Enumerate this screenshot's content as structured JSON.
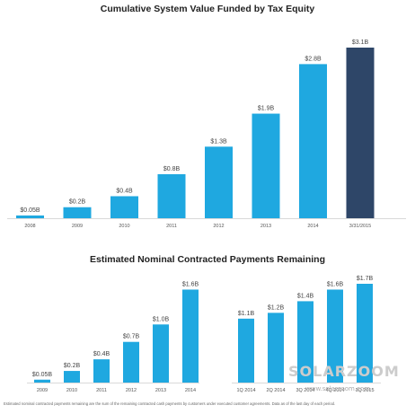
{
  "colors": {
    "bar": "#1fa8e0",
    "highlight": "#2e4668",
    "axis": "#cccccc"
  },
  "chart_data": [
    {
      "type": "bar",
      "title": "Cumulative System Value Funded by Tax Equity",
      "categories": [
        "2008",
        "2009",
        "2010",
        "2011",
        "2012",
        "2013",
        "2014",
        "3/31/2015"
      ],
      "values": [
        0.05,
        0.2,
        0.4,
        0.8,
        1.3,
        1.9,
        2.8,
        3.1
      ],
      "value_labels": [
        "$0.05B",
        "$0.2B",
        "$0.4B",
        "$0.8B",
        "$1.3B",
        "$1.9B",
        "$2.8B",
        "$3.1B"
      ],
      "highlight_index": 7,
      "unit": "$B",
      "ylim": [
        0,
        3.1
      ],
      "grid": false,
      "legend": "none"
    },
    {
      "type": "bar",
      "title": "Estimated Nominal Contracted Payments Remaining",
      "categories": [
        "2009",
        "2010",
        "2011",
        "2012",
        "2013",
        "2014",
        "1Q 2014",
        "2Q 2014",
        "3Q 2014",
        "4Q 2014",
        "1Q 2015"
      ],
      "values": [
        0.05,
        0.2,
        0.4,
        0.7,
        1.0,
        1.6,
        1.1,
        1.2,
        1.4,
        1.6,
        1.7
      ],
      "value_labels": [
        "$0.05B",
        "$0.2B",
        "$0.4B",
        "$0.7B",
        "$1.0B",
        "$1.6B",
        "$1.1B",
        "$1.2B",
        "$1.4B",
        "$1.6B",
        "$1.7B"
      ],
      "groups": [
        [
          0,
          5
        ],
        [
          6,
          10
        ]
      ],
      "unit": "$B",
      "ylim": [
        0,
        1.7
      ],
      "grid": false,
      "legend": "none"
    }
  ],
  "watermark": {
    "brand": "SOLARZOOM",
    "url": "www.solarzoom.com"
  },
  "footnote": "Estimated nominal contracted payments remaining are the sum of the remaining contracted cash payments by customers under executed customer agreements. Data as of the last day of each period."
}
